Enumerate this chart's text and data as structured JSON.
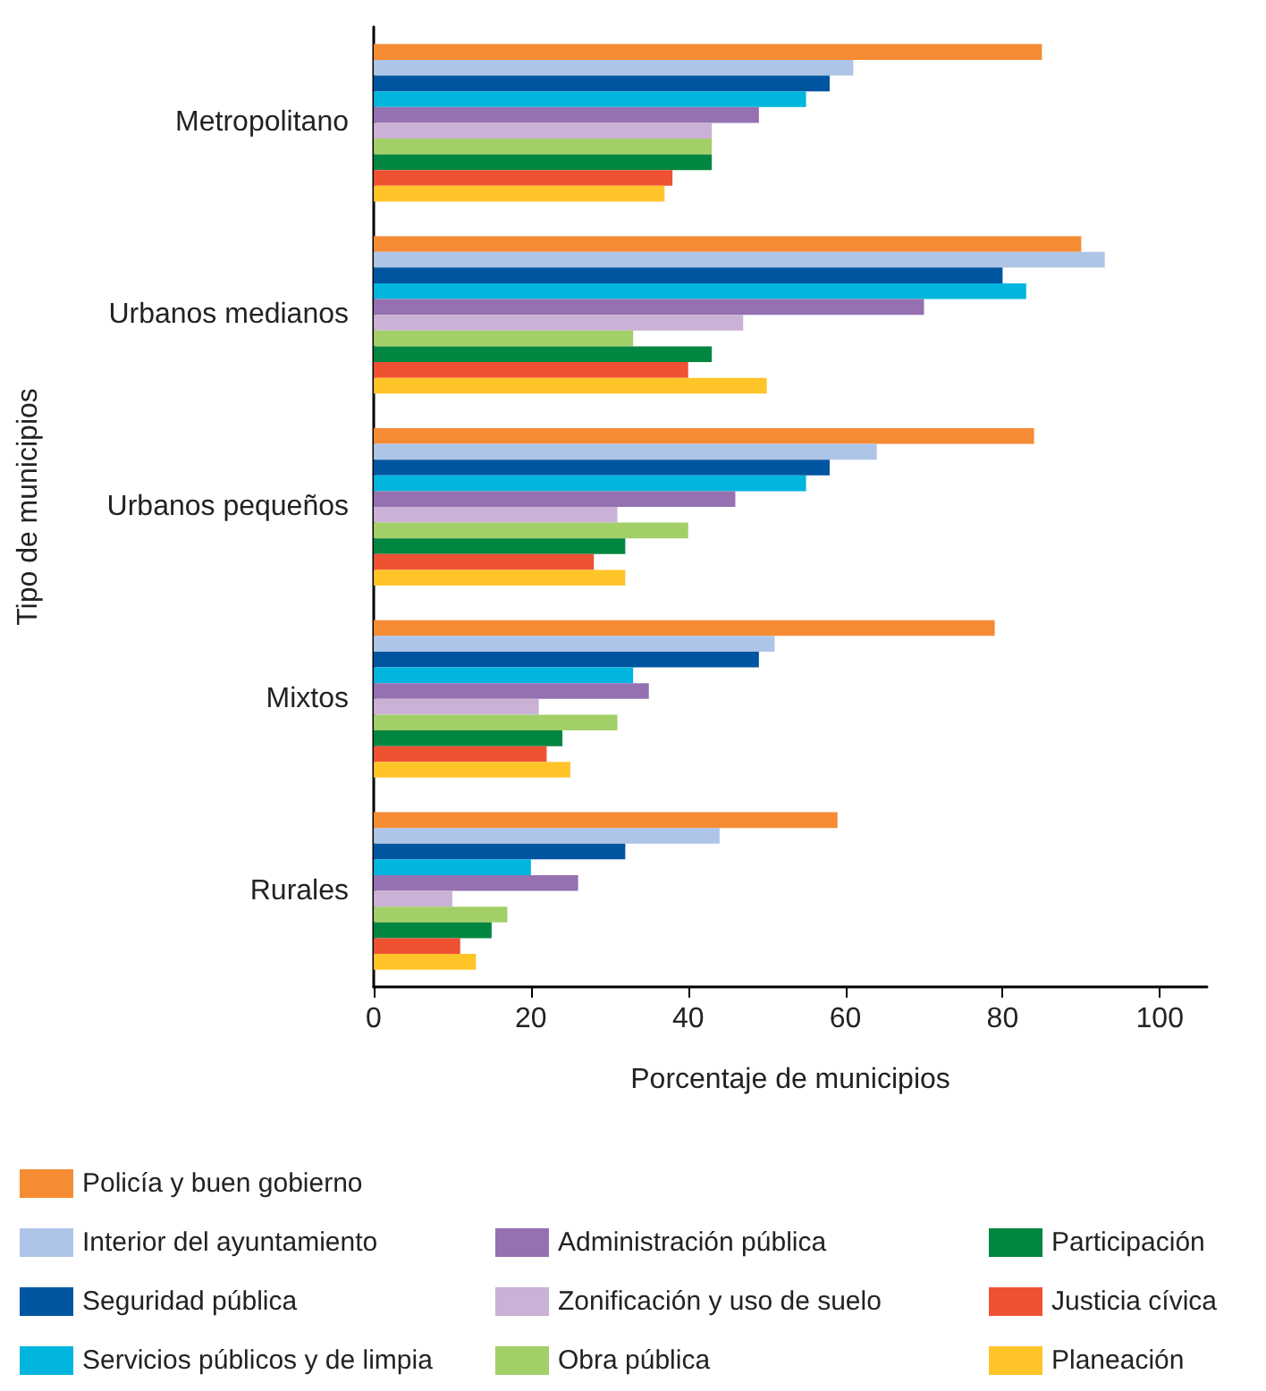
{
  "chart_data": {
    "type": "bar",
    "orientation": "horizontal",
    "xlabel": "Porcentaje de municipios",
    "ylabel": "Tipo de municipios",
    "categories": [
      "Metropolitano",
      "Urbanos medianos",
      "Urbanos pequeños",
      "Mixtos",
      "Rurales"
    ],
    "series": [
      {
        "name": "Policía y buen gobierno",
        "color": "#f58b33",
        "values": [
          85,
          90,
          84,
          79,
          59
        ]
      },
      {
        "name": "Interior del ayuntamiento",
        "color": "#aec5e7",
        "values": [
          61,
          93,
          64,
          51,
          44
        ]
      },
      {
        "name": "Seguridad pública",
        "color": "#0055a0",
        "values": [
          58,
          80,
          58,
          49,
          32
        ]
      },
      {
        "name": "Servicios públicos y de limpia",
        "color": "#00b5de",
        "values": [
          55,
          83,
          55,
          33,
          20
        ]
      },
      {
        "name": "Administración pública",
        "color": "#9571b2",
        "values": [
          49,
          70,
          46,
          35,
          26
        ]
      },
      {
        "name": "Zonificación y uso de suelo",
        "color": "#cab1d6",
        "values": [
          43,
          47,
          31,
          21,
          10
        ]
      },
      {
        "name": "Obra pública",
        "color": "#a2cf68",
        "values": [
          43,
          33,
          40,
          31,
          17
        ]
      },
      {
        "name": "Participación",
        "color": "#008640",
        "values": [
          43,
          43,
          32,
          24,
          15
        ]
      },
      {
        "name": "Justicia cívica",
        "color": "#ef5133",
        "values": [
          38,
          40,
          28,
          22,
          11
        ]
      },
      {
        "name": "Planeación",
        "color": "#ffc428",
        "values": [
          37,
          50,
          32,
          25,
          13
        ]
      }
    ],
    "xlim": [
      0,
      106
    ],
    "xticks": [
      0,
      20,
      40,
      60,
      80,
      100
    ],
    "grid": false,
    "legend": "bottom"
  }
}
